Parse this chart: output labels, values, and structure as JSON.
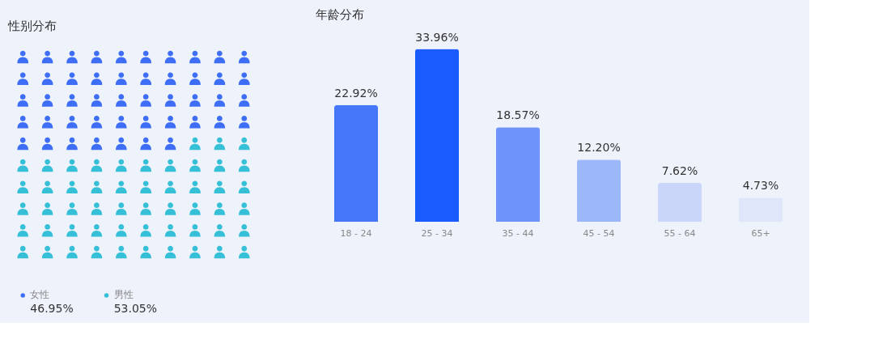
{
  "chart_data": [
    {
      "type": "other",
      "title": "性别分布",
      "categories": [
        "女性",
        "男性"
      ],
      "values": [
        46.95,
        53.05
      ],
      "value_labels": [
        "46.95%",
        "53.05%"
      ],
      "colors": [
        "#3d6ef5",
        "#36c0d8"
      ]
    },
    {
      "type": "bar",
      "title": "年龄分布",
      "categories": [
        "18 - 24",
        "25 - 34",
        "35 - 44",
        "45 - 54",
        "55 - 64",
        "65+"
      ],
      "values": [
        22.92,
        33.96,
        18.57,
        12.2,
        7.62,
        4.73
      ],
      "value_labels": [
        "22.92%",
        "33.96%",
        "18.57%",
        "12.20%",
        "7.62%",
        "4.73%"
      ],
      "colors": [
        "#4677fb",
        "#1a5cff",
        "#6e93fb",
        "#9db7fb",
        "#c9d6fa",
        "#dfe6f9"
      ],
      "grid": false
    }
  ]
}
